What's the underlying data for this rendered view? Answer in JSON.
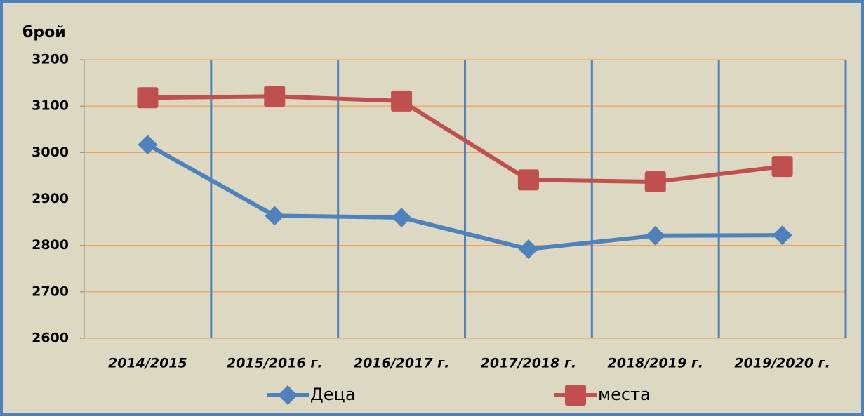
{
  "chart_data": {
    "type": "line",
    "ylabel": "брой",
    "categories": [
      "2014/2015",
      "2015/2016 г.",
      "2016/2017 г.",
      "2017/2018 г.",
      "2018/2019 г.",
      "2019/2020 г."
    ],
    "series": [
      {
        "name": "Деца",
        "color": "#4f81bd",
        "marker": "diamond",
        "values": [
          3017,
          2864,
          2860,
          2792,
          2821,
          2822
        ]
      },
      {
        "name": "места",
        "color": "#c0504d",
        "marker": "square",
        "values": [
          3118,
          3121,
          3111,
          2941,
          2937,
          2970
        ]
      }
    ],
    "ylim": [
      2600,
      3200
    ],
    "yticks": [
      2600,
      2700,
      2800,
      2900,
      3000,
      3100,
      3200
    ],
    "grid": true,
    "grid_color": "#f79646",
    "vgrid_color": "#4f81bd",
    "legend": "bottom"
  }
}
